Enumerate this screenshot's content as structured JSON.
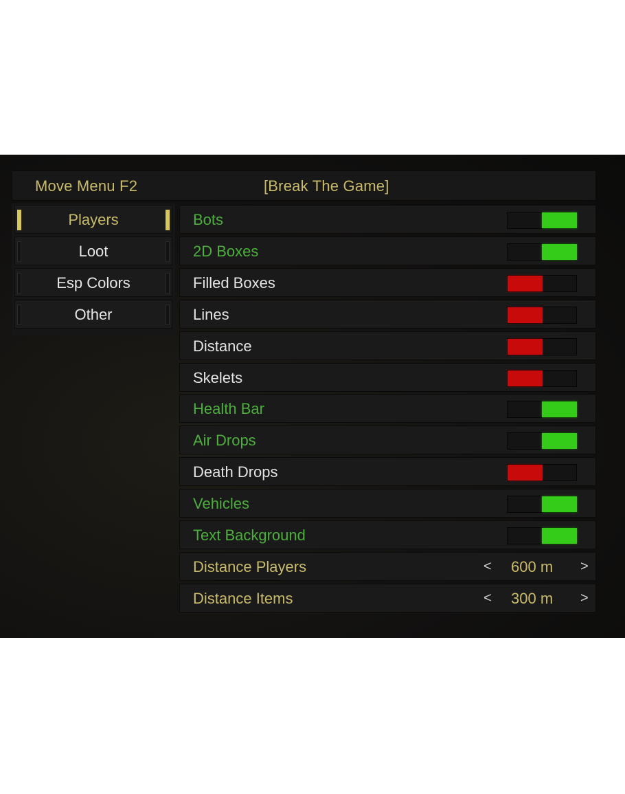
{
  "header": {
    "left_label": "Move Menu F2",
    "title": "[Break The Game]"
  },
  "tabs": [
    {
      "label": "Players",
      "active": true
    },
    {
      "label": "Loot",
      "active": false
    },
    {
      "label": "Esp Colors",
      "active": false
    },
    {
      "label": "Other",
      "active": false
    }
  ],
  "options": [
    {
      "label": "Bots",
      "type": "toggle",
      "enabled": true
    },
    {
      "label": "2D Boxes",
      "type": "toggle",
      "enabled": true
    },
    {
      "label": "Filled Boxes",
      "type": "toggle",
      "enabled": false
    },
    {
      "label": "Lines",
      "type": "toggle",
      "enabled": false
    },
    {
      "label": "Distance",
      "type": "toggle",
      "enabled": false
    },
    {
      "label": "Skelets",
      "type": "toggle",
      "enabled": false
    },
    {
      "label": "Health Bar",
      "type": "toggle",
      "enabled": true
    },
    {
      "label": "Air Drops",
      "type": "toggle",
      "enabled": true
    },
    {
      "label": "Death Drops",
      "type": "toggle",
      "enabled": false
    },
    {
      "label": "Vehicles",
      "type": "toggle",
      "enabled": true
    },
    {
      "label": "Text Background",
      "type": "toggle",
      "enabled": true
    },
    {
      "label": "Distance Players",
      "type": "slider",
      "value": "600 m",
      "dec": "<",
      "inc": ">"
    },
    {
      "label": "Distance Items",
      "type": "slider",
      "value": "300 m",
      "dec": "<",
      "inc": ">"
    }
  ],
  "colors": {
    "on": "#34cc18",
    "off": "#c80a0a",
    "accent": "#c9bb6a",
    "on_text": "#4caf3c"
  }
}
